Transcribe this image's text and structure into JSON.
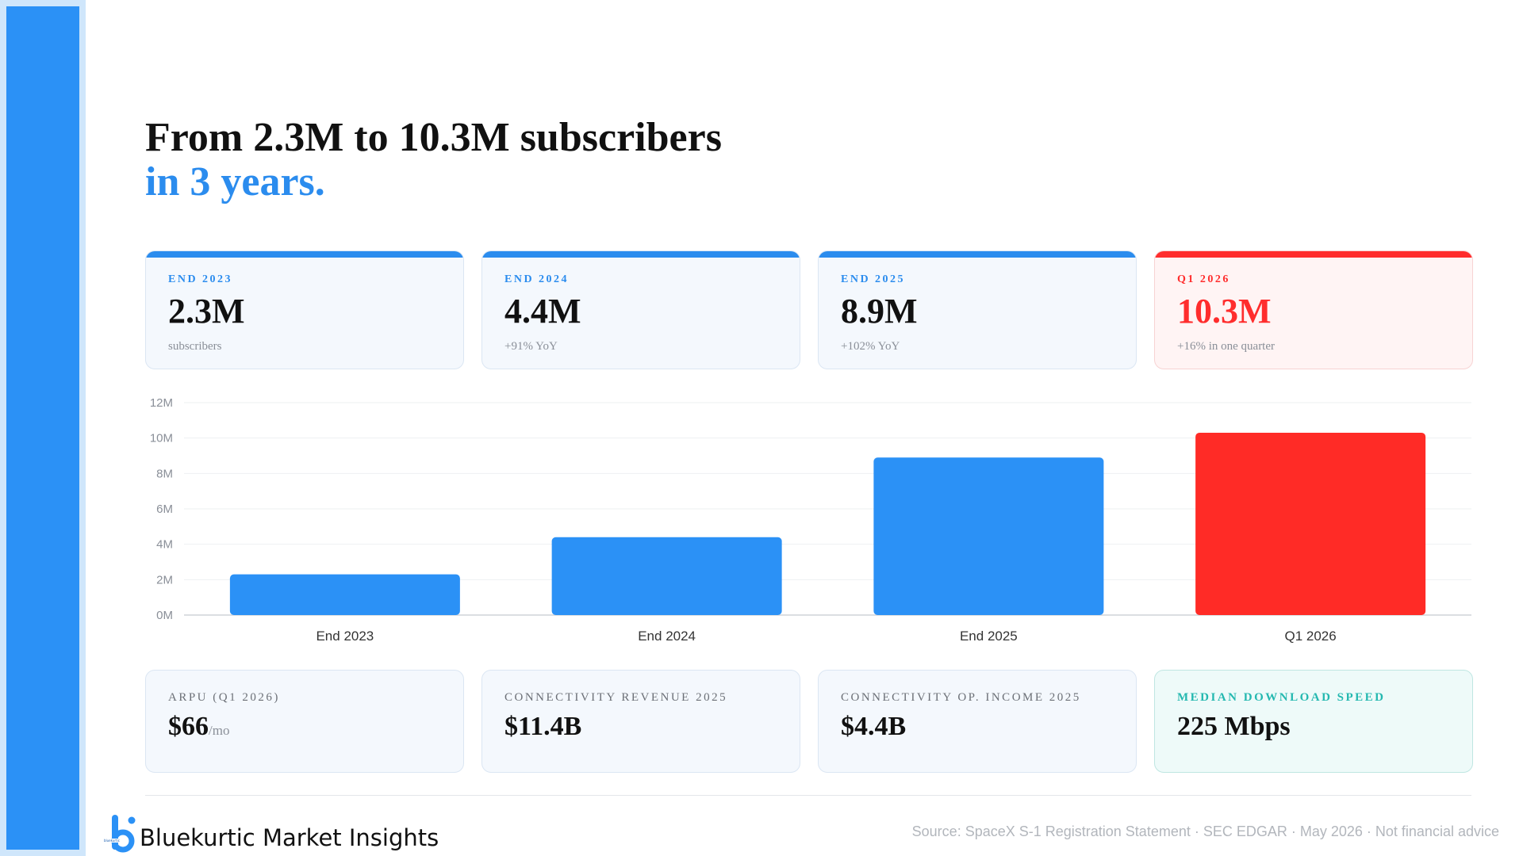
{
  "headline": {
    "line1": "From 2.3M to 10.3M subscribers",
    "line2": "in 3 years."
  },
  "kpis": [
    {
      "label": "END 2023",
      "value": "2.3M",
      "sub": "subscribers",
      "accent": "#2b8cee"
    },
    {
      "label": "END 2024",
      "value": "4.4M",
      "sub": "+91% YoY",
      "accent": "#2b8cee"
    },
    {
      "label": "END 2025",
      "value": "8.9M",
      "sub": "+102% YoY",
      "accent": "#2b8cee"
    },
    {
      "label": "Q1 2026",
      "value": "10.3M",
      "sub": "+16% in one quarter",
      "accent": "#ff2d2d"
    }
  ],
  "chart_data": {
    "type": "bar",
    "categories": [
      "End 2023",
      "End 2024",
      "End 2025",
      "Q1 2026"
    ],
    "values": [
      2.3,
      4.4,
      8.9,
      10.3
    ],
    "value_unit": "M",
    "colors": [
      "#2b91f6",
      "#2b91f6",
      "#2b91f6",
      "#ff2b26"
    ],
    "ylim": [
      0,
      12
    ],
    "yticks": [
      0,
      2,
      4,
      6,
      8,
      10,
      12
    ],
    "ytick_labels": [
      "0M",
      "2M",
      "4M",
      "6M",
      "8M",
      "10M",
      "12M"
    ],
    "grid": true,
    "title": "",
    "xlabel": "",
    "ylabel": ""
  },
  "metrics": [
    {
      "label": "ARPU (Q1 2026)",
      "value": "$66",
      "unit": "/mo"
    },
    {
      "label": "CONNECTIVITY REVENUE 2025",
      "value": "$11.4B",
      "unit": ""
    },
    {
      "label": "CONNECTIVITY OP. INCOME 2025",
      "value": "$4.4B",
      "unit": ""
    },
    {
      "label": "MEDIAN DOWNLOAD SPEED",
      "value": "225 Mbps",
      "unit": ""
    }
  ],
  "footer": {
    "brand": "Bluekurtic Market Insights",
    "logo_text": "bluekurtic",
    "source": "Source: SpaceX S-1 Registration Statement · SEC EDGAR · May 2026 · Not financial advice"
  },
  "colors": {
    "accent_blue": "#2b8cee",
    "accent_red": "#ff2d2d",
    "accent_teal": "#24b8b0"
  }
}
